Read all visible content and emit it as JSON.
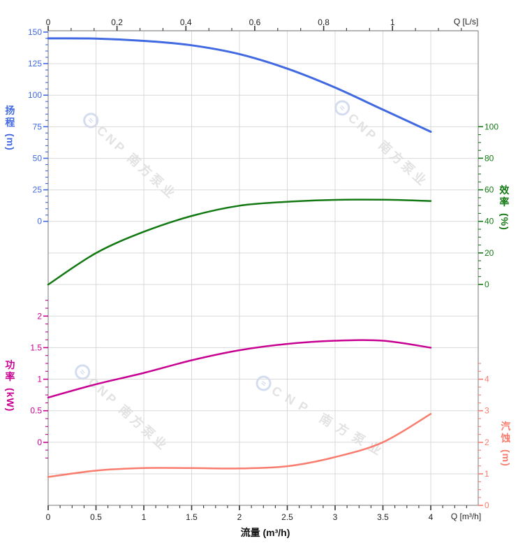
{
  "watermark": {
    "text": "CNP 南方泵业",
    "logo_glyph": "≈"
  },
  "colors": {
    "head": "#4169E1",
    "efficiency": "#127812",
    "power": "#C80091",
    "npsh": "#F97D6E",
    "grid": "#D9D9D9",
    "axis_line": "#9E9E9E",
    "xtick": "#333333",
    "xtext": "#222222"
  },
  "chart_data": {
    "type": "line",
    "title": "",
    "x_axis": {
      "label": "流量 (m³/h)",
      "unit_label": "Q [m³/h]",
      "ticks": [
        0,
        0.5,
        1,
        1.5,
        2,
        2.5,
        3,
        3.5,
        4
      ],
      "range": [
        0,
        4.5
      ],
      "grid": "on"
    },
    "x_axis_top": {
      "unit_label": "Q [L/s]",
      "ticks": [
        0,
        0.2,
        0.4,
        0.6,
        0.8,
        1
      ],
      "range": [
        0,
        1.25
      ]
    },
    "y_axes": [
      {
        "id": "head",
        "title": "扬程",
        "unit": "(m)",
        "side": "left",
        "ticks": [
          150,
          125,
          100,
          75,
          50,
          25,
          0
        ],
        "range_shown": [
          0,
          150
        ]
      },
      {
        "id": "efficiency",
        "title": "效率",
        "unit": "(%)",
        "side": "right",
        "ticks": [
          100,
          80,
          60,
          40,
          20,
          0
        ],
        "range_shown": [
          0,
          100
        ]
      },
      {
        "id": "power",
        "title": "功率",
        "unit": "(kW)",
        "side": "left",
        "ticks": [
          2,
          1.5,
          1,
          0.5,
          0
        ],
        "range_shown": [
          0,
          2
        ]
      },
      {
        "id": "npsh",
        "title": "汽蚀",
        "unit": "(m)",
        "side": "right",
        "ticks": [
          4,
          3,
          2,
          1,
          0
        ],
        "range_shown": [
          0,
          4
        ]
      }
    ],
    "series": [
      {
        "name": "head",
        "axis": "head",
        "x": [
          0,
          0.5,
          1,
          1.5,
          2,
          2.5,
          3,
          3.5,
          4
        ],
        "y": [
          145,
          144.8,
          143,
          139.5,
          132.5,
          121,
          106,
          88.5,
          71
        ]
      },
      {
        "name": "efficiency",
        "axis": "efficiency",
        "x": [
          0,
          0.5,
          1,
          1.5,
          2,
          2.5,
          3,
          3.5,
          4
        ],
        "y": [
          0,
          20,
          33.5,
          43.5,
          50,
          52.5,
          53.7,
          53.8,
          53
        ]
      },
      {
        "name": "power",
        "axis": "power",
        "x": [
          0,
          0.5,
          1,
          1.5,
          2,
          2.5,
          3,
          3.5,
          4
        ],
        "y": [
          0.71,
          0.92,
          1.1,
          1.3,
          1.46,
          1.56,
          1.61,
          1.61,
          1.5
        ]
      },
      {
        "name": "npsh",
        "axis": "npsh",
        "x": [
          0,
          0.5,
          1,
          1.5,
          2,
          2.5,
          3,
          3.5,
          4
        ],
        "y": [
          0.9,
          1.1,
          1.18,
          1.18,
          1.17,
          1.24,
          1.53,
          2.0,
          2.9
        ]
      }
    ]
  }
}
